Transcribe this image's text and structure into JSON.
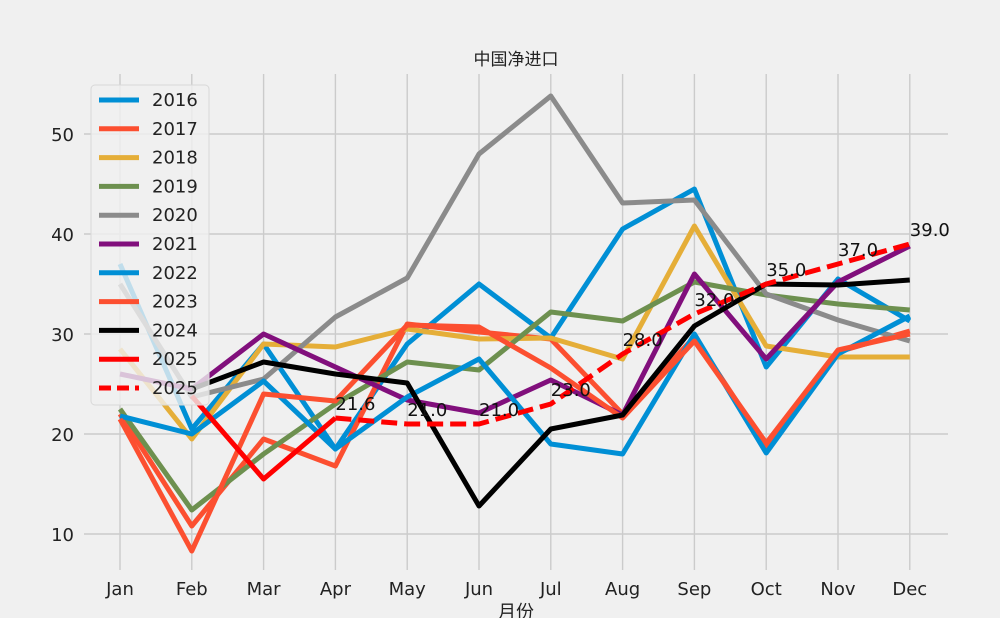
{
  "chart_data": {
    "type": "line",
    "title": "中国净进口",
    "xlabel": "月份",
    "ylabel": "",
    "categories": [
      "Jan",
      "Feb",
      "Mar",
      "Apr",
      "May",
      "Jun",
      "Jul",
      "Aug",
      "Sep",
      "Oct",
      "Nov",
      "Dec"
    ],
    "ylim": [
      6.4,
      56.0
    ],
    "yticks": [
      10,
      20,
      30,
      40,
      50
    ],
    "grid": true,
    "legend_position": "top-left",
    "series": [
      {
        "name": "2016",
        "color": "#008fd5",
        "dash": false,
        "values": [
          37.0,
          20.5,
          29.0,
          18.5,
          29.0,
          35.0,
          29.6,
          40.5,
          44.5,
          26.7,
          35.5,
          31.3
        ]
      },
      {
        "name": "2017",
        "color": "#fc4f30",
        "dash": false,
        "values": [
          22.0,
          10.8,
          19.5,
          16.8,
          31.0,
          30.2,
          29.5,
          22.0,
          29.7,
          18.8,
          28.2,
          30.3
        ]
      },
      {
        "name": "2018",
        "color": "#e5ae38",
        "dash": false,
        "values": [
          28.5,
          19.5,
          29.0,
          28.7,
          30.5,
          29.5,
          29.6,
          27.5,
          40.8,
          28.8,
          27.7,
          27.7
        ]
      },
      {
        "name": "2019",
        "color": "#6d904f",
        "dash": false,
        "values": [
          22.5,
          12.4,
          18.0,
          23.0,
          27.2,
          26.4,
          32.2,
          31.3,
          35.2,
          33.9,
          33.0,
          32.4
        ]
      },
      {
        "name": "2020",
        "color": "#8b8b8b",
        "dash": false,
        "values": [
          35.0,
          23.7,
          25.5,
          31.7,
          35.6,
          48.0,
          53.8,
          43.1,
          43.4,
          34.0,
          31.4,
          29.3
        ]
      },
      {
        "name": "2021",
        "color": "#810f7c",
        "dash": false,
        "values": [
          26.0,
          24.5,
          30.0,
          26.7,
          23.4,
          22.1,
          25.4,
          21.9,
          36.0,
          27.5,
          35.2,
          38.8
        ]
      },
      {
        "name": "2022",
        "color": "#008fd5",
        "dash": false,
        "values": [
          21.8,
          20.0,
          25.3,
          18.5,
          23.7,
          27.5,
          19.0,
          18.0,
          30.0,
          18.1,
          28.0,
          31.8
        ]
      },
      {
        "name": "2023",
        "color": "#fc4f30",
        "dash": false,
        "values": [
          21.5,
          8.3,
          24.0,
          23.3,
          30.9,
          30.7,
          26.6,
          21.6,
          29.3,
          19.1,
          28.4,
          30.0
        ]
      },
      {
        "name": "2024",
        "color": "#000000",
        "dash": false,
        "values": [
          null,
          24.5,
          27.2,
          26.0,
          25.1,
          12.8,
          20.5,
          21.9,
          30.8,
          35.0,
          34.9,
          35.4
        ]
      },
      {
        "name": "2025",
        "color": "#ff0000",
        "dash": false,
        "values": [
          null,
          23.8,
          15.5,
          21.6,
          null,
          null,
          null,
          null,
          null,
          null,
          null,
          null
        ]
      },
      {
        "name": "2025",
        "color": "#ff0000",
        "dash": true,
        "values": [
          null,
          null,
          null,
          21.6,
          21.0,
          21.0,
          23.0,
          28.0,
          32.0,
          35.0,
          37.0,
          39.0
        ]
      }
    ],
    "annotations": [
      {
        "x": "Apr",
        "y": 21.6,
        "text": "21.6"
      },
      {
        "x": "May",
        "y": 21.0,
        "text": "21.0"
      },
      {
        "x": "Jun",
        "y": 21.0,
        "text": "21.0"
      },
      {
        "x": "Jul",
        "y": 23.0,
        "text": "23.0"
      },
      {
        "x": "Aug",
        "y": 28.0,
        "text": "28.0"
      },
      {
        "x": "Sep",
        "y": 32.0,
        "text": "32.0"
      },
      {
        "x": "Oct",
        "y": 35.0,
        "text": "35.0"
      },
      {
        "x": "Nov",
        "y": 37.0,
        "text": "37.0"
      },
      {
        "x": "Dec",
        "y": 39.0,
        "text": "39.0"
      }
    ]
  }
}
